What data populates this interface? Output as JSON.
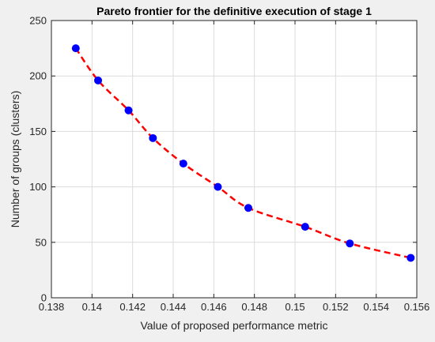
{
  "chart_data": {
    "type": "scatter",
    "title": "Pareto frontier for the definitive execution of stage 1",
    "xlabel": "Value of proposed performance metric",
    "ylabel": "Number of groups (clusters)",
    "xlim": [
      0.138,
      0.156
    ],
    "ylim": [
      0,
      250
    ],
    "xticks": [
      0.138,
      0.14,
      0.142,
      0.144,
      0.146,
      0.148,
      0.15,
      0.152,
      0.154,
      0.156
    ],
    "xtick_labels": [
      "0.138",
      "0.14",
      "0.142",
      "0.144",
      "0.146",
      "0.148",
      "0.15",
      "0.152",
      "0.154",
      "0.156"
    ],
    "yticks": [
      0,
      50,
      100,
      150,
      200,
      250
    ],
    "ytick_labels": [
      "0",
      "50",
      "100",
      "150",
      "200",
      "250"
    ],
    "grid": true,
    "series": [
      {
        "marker": "filled-circle",
        "color": "#0000ff",
        "x": [
          0.1392,
          0.1403,
          0.1418,
          0.143,
          0.1445,
          0.1462,
          0.1477,
          0.1505,
          0.1527,
          0.1557
        ],
        "y": [
          225,
          196,
          169,
          144,
          121,
          100,
          81,
          64,
          49,
          36
        ]
      },
      {
        "style": "dashed-fit-curve",
        "color": "#ff0000",
        "x": [
          0.1392,
          0.1403,
          0.1418,
          0.143,
          0.1445,
          0.1462,
          0.1477,
          0.1505,
          0.1527,
          0.1557
        ],
        "y": [
          225,
          196,
          169,
          144,
          121,
          100,
          81,
          64,
          49,
          36
        ]
      }
    ]
  }
}
